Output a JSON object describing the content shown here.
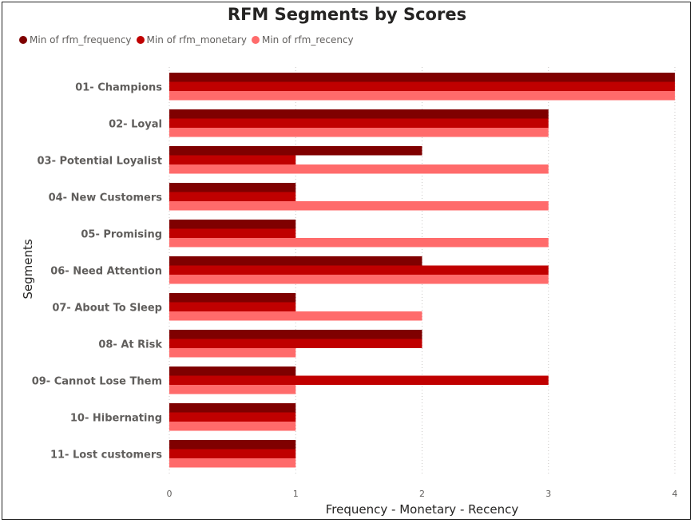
{
  "chart_data": {
    "type": "bar",
    "orientation": "horizontal",
    "title": "RFM Segments by Scores",
    "xlabel": "Frequency - Monetary - Recency",
    "ylabel": "Segments",
    "xlim": [
      0,
      4
    ],
    "x_ticks": [
      "0",
      "1",
      "2",
      "3",
      "4"
    ],
    "grid": "vertical dotted",
    "legend_position": "top-left",
    "categories": [
      "01- Champions",
      "02- Loyal",
      "03- Potential Loyalist",
      "04- New Customers",
      "05- Promising",
      "06- Need Attention",
      "07- About To Sleep",
      "08- At Risk",
      "09- Cannot Lose Them",
      "10- Hibernating",
      "11- Lost customers"
    ],
    "series": [
      {
        "name": "Min of rfm_frequency",
        "color": "#7f0000",
        "values": [
          4,
          3,
          2,
          1,
          1,
          2,
          1,
          2,
          1,
          1,
          1
        ]
      },
      {
        "name": "Min of rfm_monetary",
        "color": "#c00000",
        "values": [
          4,
          3,
          1,
          1,
          1,
          3,
          1,
          2,
          3,
          1,
          1
        ]
      },
      {
        "name": "Min of rfm_recency",
        "color": "#ff6b6b",
        "values": [
          4,
          3,
          3,
          3,
          3,
          3,
          2,
          1,
          1,
          1,
          1
        ]
      }
    ]
  }
}
